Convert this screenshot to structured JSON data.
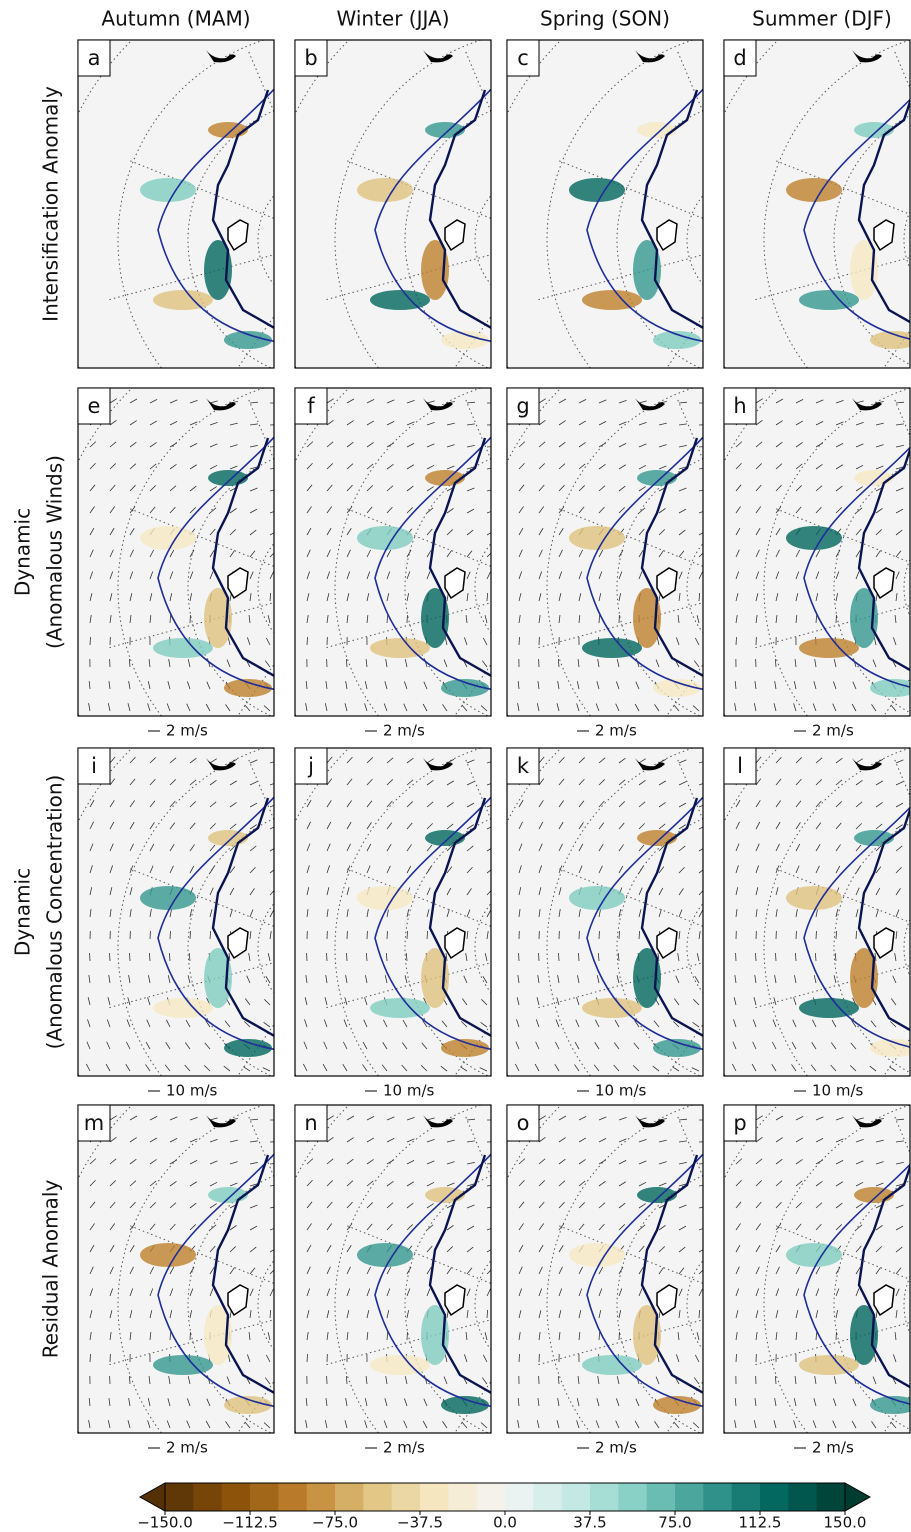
{
  "columns": [
    "Autumn (MAM)",
    "Winter (JJA)",
    "Spring (SON)",
    "Summer (DJF)"
  ],
  "rows": [
    {
      "label": [
        "Intensification Anomaly"
      ],
      "panels": [
        "a",
        "b",
        "c",
        "d"
      ]
    },
    {
      "label": [
        "Dynamic",
        "(Anomalous Winds)"
      ],
      "panels": [
        "e",
        "f",
        "g",
        "h"
      ],
      "scale": "2 m/s"
    },
    {
      "label": [
        "Dynamic",
        "(Anomalous Concentration)"
      ],
      "panels": [
        "i",
        "j",
        "k",
        "l"
      ],
      "scale": "10 m/s"
    },
    {
      "label": [
        "Residual Anomaly"
      ],
      "panels": [
        "m",
        "n",
        "o",
        "p"
      ],
      "scale": "2 m/s"
    }
  ],
  "colorbar": {
    "lim": [
      -150,
      150
    ],
    "ticks": [
      {
        "value": -150,
        "label": "−150.0"
      },
      {
        "value": -112.5,
        "label": "−112.5"
      },
      {
        "value": -75,
        "label": "−75.0"
      },
      {
        "value": -37.5,
        "label": "−37.5"
      },
      {
        "value": 0,
        "label": "0.0"
      },
      {
        "value": 37.5,
        "label": "37.5"
      },
      {
        "value": 75,
        "label": "75.0"
      },
      {
        "value": 112.5,
        "label": "112.5"
      },
      {
        "value": 150,
        "label": "150.0"
      }
    ]
  }
}
